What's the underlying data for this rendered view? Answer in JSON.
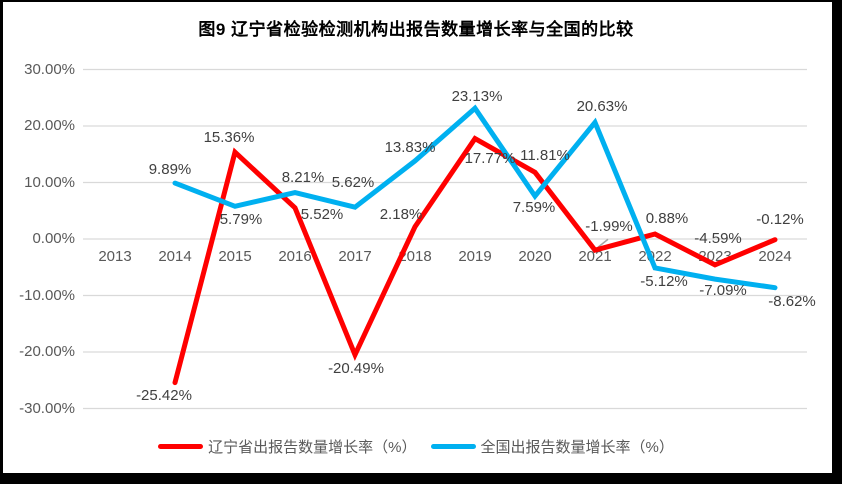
{
  "chart_data": {
    "type": "line",
    "title": "图9  辽宁省检验检测机构出报告数量增长率与全国的比较",
    "categories": [
      "2013",
      "2014",
      "2015",
      "2016",
      "2017",
      "2018",
      "2019",
      "2020",
      "2021",
      "2022",
      "2023",
      "2024"
    ],
    "ylim": [
      -30,
      30
    ],
    "y_ticks": [
      30,
      20,
      10,
      0,
      -10,
      -20,
      -30
    ],
    "y_tick_labels": [
      "30.00%",
      "20.00%",
      "10.00%",
      "0.00%",
      "-10.00%",
      "-20.00%",
      "-30.00%"
    ],
    "grid": true,
    "gridline_color": "#D9D9D9",
    "axis_label_color": "#595959",
    "data_label_color": "#404040",
    "legend_position": "bottom",
    "label_leader": {
      "series": 0,
      "index": 8,
      "color": "#A6A6A6"
    },
    "series": [
      {
        "id": "liaoning",
        "name": "辽宁省出报告数量增长率（%）",
        "color": "#FF0000",
        "values": [
          null,
          -25.42,
          15.36,
          5.52,
          -20.49,
          2.18,
          17.77,
          11.81,
          -1.99,
          0.88,
          -4.59,
          -0.12
        ],
        "labels": [
          null,
          "-25.42%",
          "15.36%",
          "5.52%",
          "-20.49%",
          "2.18%",
          "17.77%",
          "11.81%",
          "-1.99%",
          "0.88%",
          "-4.59%",
          "-0.12%"
        ],
        "label_offsets": [
          null,
          [
            -11,
            13
          ],
          [
            -6,
            -14
          ],
          [
            27,
            7
          ],
          [
            1,
            14
          ],
          [
            -14,
            -12
          ],
          [
            15,
            20
          ],
          [
            10,
            -16
          ],
          [
            14,
            -23
          ],
          [
            12,
            -15
          ],
          [
            3,
            -26
          ],
          [
            5,
            -20
          ]
        ]
      },
      {
        "id": "national",
        "name": "全国出报告数量增长率（%）",
        "color": "#00B0F0",
        "values": [
          null,
          9.89,
          5.79,
          8.21,
          5.62,
          13.83,
          23.13,
          7.59,
          20.63,
          -5.12,
          -7.09,
          -8.62
        ],
        "labels": [
          null,
          "9.89%",
          "5.79%",
          "8.21%",
          "5.62%",
          "13.83%",
          "23.13%",
          "7.59%",
          "20.63%",
          "-5.12%",
          "-7.09%",
          "-8.62%"
        ],
        "label_offsets": [
          null,
          [
            -5,
            -13
          ],
          [
            6,
            14
          ],
          [
            8,
            -15
          ],
          [
            -2,
            -24
          ],
          [
            -5,
            -13
          ],
          [
            2,
            -11
          ],
          [
            -1,
            12
          ],
          [
            7,
            -15
          ],
          [
            9,
            14
          ],
          [
            8,
            12
          ],
          [
            17,
            14
          ]
        ]
      }
    ]
  }
}
